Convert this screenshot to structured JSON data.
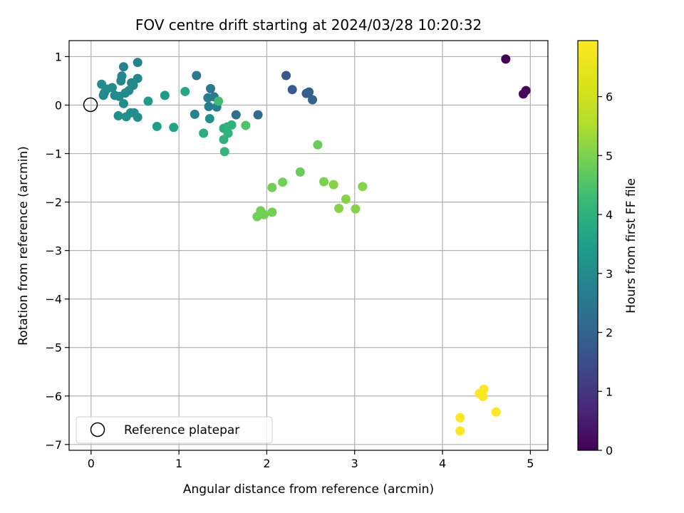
{
  "chart_data": {
    "type": "scatter",
    "title": "FOV centre drift starting at 2024/03/28 10:20:32",
    "xlabel": "Angular distance from reference (arcmin)",
    "ylabel": "Rotation from reference (arcmin)",
    "xlim": [
      -0.25,
      5.2
    ],
    "ylim": [
      -7.12,
      1.33
    ],
    "xticks": [
      0,
      1,
      2,
      3,
      4,
      5
    ],
    "yticks": [
      -7,
      -6,
      -5,
      -4,
      -3,
      -2,
      -1,
      0,
      1
    ],
    "xtick_labels": [
      "0",
      "1",
      "2",
      "3",
      "4",
      "5"
    ],
    "ytick_labels": [
      "−7",
      "−6",
      "−5",
      "−4",
      "−3",
      "−2",
      "−1",
      "0",
      "1"
    ],
    "grid": true,
    "colormap": "viridis",
    "colorbar": {
      "label": "Hours from first FF file",
      "range": [
        0,
        6.95
      ],
      "ticks": [
        0,
        1,
        2,
        3,
        4,
        5,
        6
      ],
      "tick_labels": [
        "0",
        "1",
        "2",
        "3",
        "4",
        "5",
        "6"
      ]
    },
    "legend": {
      "position": "lower-left",
      "entries": [
        "Reference platepar"
      ]
    },
    "reference_point": {
      "x": 0,
      "y": 0,
      "label": "Reference platepar"
    },
    "points": [
      {
        "x": 4.72,
        "y": 0.95,
        "c": 0.0
      },
      {
        "x": 4.95,
        "y": 0.3,
        "c": 0.1
      },
      {
        "x": 4.92,
        "y": 0.23,
        "c": 0.15
      },
      {
        "x": 2.22,
        "y": 0.61,
        "c": 1.7
      },
      {
        "x": 2.29,
        "y": 0.32,
        "c": 1.8
      },
      {
        "x": 2.45,
        "y": 0.24,
        "c": 1.85
      },
      {
        "x": 2.48,
        "y": 0.27,
        "c": 1.9
      },
      {
        "x": 2.52,
        "y": 0.11,
        "c": 2.0
      },
      {
        "x": 1.9,
        "y": -0.2,
        "c": 2.2
      },
      {
        "x": 1.65,
        "y": -0.2,
        "c": 2.3
      },
      {
        "x": 1.2,
        "y": 0.61,
        "c": 2.5
      },
      {
        "x": 1.36,
        "y": 0.34,
        "c": 2.5
      },
      {
        "x": 1.33,
        "y": 0.15,
        "c": 2.6
      },
      {
        "x": 1.4,
        "y": 0.17,
        "c": 2.6
      },
      {
        "x": 1.34,
        "y": -0.03,
        "c": 2.7
      },
      {
        "x": 1.43,
        "y": -0.04,
        "c": 2.7
      },
      {
        "x": 1.18,
        "y": -0.19,
        "c": 2.8
      },
      {
        "x": 1.35,
        "y": -0.28,
        "c": 3.1
      },
      {
        "x": 0.53,
        "y": 0.88,
        "c": 2.8
      },
      {
        "x": 0.37,
        "y": 0.79,
        "c": 2.8
      },
      {
        "x": 0.35,
        "y": 0.6,
        "c": 2.9
      },
      {
        "x": 0.53,
        "y": 0.55,
        "c": 2.9
      },
      {
        "x": 0.34,
        "y": 0.5,
        "c": 2.9
      },
      {
        "x": 0.46,
        "y": 0.46,
        "c": 2.9
      },
      {
        "x": 0.12,
        "y": 0.43,
        "c": 3.0
      },
      {
        "x": 0.48,
        "y": 0.41,
        "c": 3.0
      },
      {
        "x": 0.24,
        "y": 0.36,
        "c": 3.0
      },
      {
        "x": 0.18,
        "y": 0.33,
        "c": 3.0
      },
      {
        "x": 0.43,
        "y": 0.3,
        "c": 3.0
      },
      {
        "x": 0.15,
        "y": 0.25,
        "c": 3.0
      },
      {
        "x": 0.39,
        "y": 0.25,
        "c": 3.0
      },
      {
        "x": 0.14,
        "y": 0.2,
        "c": 3.0
      },
      {
        "x": 0.27,
        "y": 0.2,
        "c": 3.0
      },
      {
        "x": 0.32,
        "y": 0.18,
        "c": 3.0
      },
      {
        "x": 0.37,
        "y": 0.03,
        "c": 3.0
      },
      {
        "x": 0.45,
        "y": -0.16,
        "c": 3.1
      },
      {
        "x": 0.49,
        "y": -0.16,
        "c": 3.1
      },
      {
        "x": 0.31,
        "y": -0.22,
        "c": 3.1
      },
      {
        "x": 0.4,
        "y": -0.24,
        "c": 3.1
      },
      {
        "x": 0.53,
        "y": -0.25,
        "c": 3.1
      },
      {
        "x": 0.65,
        "y": 0.08,
        "c": 3.4
      },
      {
        "x": 0.84,
        "y": 0.2,
        "c": 3.4
      },
      {
        "x": 1.07,
        "y": 0.28,
        "c": 3.7
      },
      {
        "x": 0.75,
        "y": -0.44,
        "c": 3.5
      },
      {
        "x": 0.94,
        "y": -0.46,
        "c": 3.6
      },
      {
        "x": 1.28,
        "y": -0.58,
        "c": 3.9
      },
      {
        "x": 1.45,
        "y": 0.08,
        "c": 4.3
      },
      {
        "x": 1.51,
        "y": -0.48,
        "c": 3.9
      },
      {
        "x": 1.55,
        "y": -0.45,
        "c": 4.0
      },
      {
        "x": 1.6,
        "y": -0.41,
        "c": 4.0
      },
      {
        "x": 1.56,
        "y": -0.58,
        "c": 4.0
      },
      {
        "x": 1.51,
        "y": -0.71,
        "c": 4.0
      },
      {
        "x": 1.52,
        "y": -0.96,
        "c": 4.1
      },
      {
        "x": 1.76,
        "y": -0.42,
        "c": 4.5
      },
      {
        "x": 2.58,
        "y": -0.82,
        "c": 4.8
      },
      {
        "x": 2.38,
        "y": -1.38,
        "c": 4.8
      },
      {
        "x": 2.18,
        "y": -1.59,
        "c": 4.9
      },
      {
        "x": 2.06,
        "y": -1.7,
        "c": 4.9
      },
      {
        "x": 2.65,
        "y": -1.58,
        "c": 5.0
      },
      {
        "x": 2.76,
        "y": -1.64,
        "c": 5.1
      },
      {
        "x": 3.09,
        "y": -1.68,
        "c": 5.1
      },
      {
        "x": 2.9,
        "y": -1.94,
        "c": 5.1
      },
      {
        "x": 2.82,
        "y": -2.13,
        "c": 5.1
      },
      {
        "x": 3.01,
        "y": -2.14,
        "c": 5.1
      },
      {
        "x": 1.93,
        "y": -2.18,
        "c": 4.9
      },
      {
        "x": 2.06,
        "y": -2.21,
        "c": 4.9
      },
      {
        "x": 1.97,
        "y": -2.26,
        "c": 4.9
      },
      {
        "x": 1.89,
        "y": -2.3,
        "c": 4.9
      },
      {
        "x": 4.47,
        "y": -5.86,
        "c": 6.9
      },
      {
        "x": 4.42,
        "y": -5.95,
        "c": 6.9
      },
      {
        "x": 4.46,
        "y": -6.01,
        "c": 6.9
      },
      {
        "x": 4.61,
        "y": -6.33,
        "c": 6.9
      },
      {
        "x": 4.2,
        "y": -6.45,
        "c": 6.9
      },
      {
        "x": 4.2,
        "y": -6.72,
        "c": 6.9
      }
    ]
  }
}
